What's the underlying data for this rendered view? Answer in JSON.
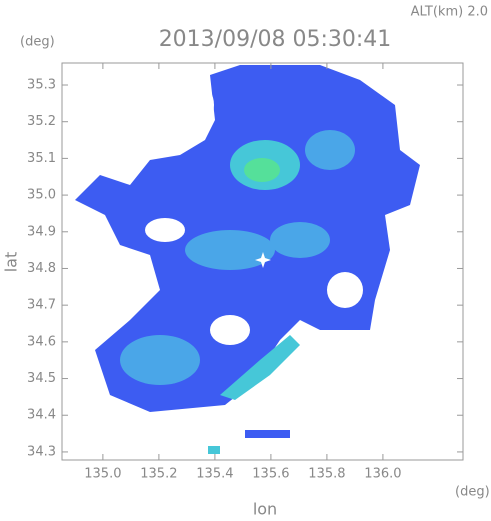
{
  "chart_data": {
    "type": "map",
    "title": "2013/09/08 05:30:41",
    "annotation": "ALT(km) 2.0",
    "x_label": "lon",
    "y_label": "lat",
    "x_unit": "(deg)",
    "y_unit": "(deg)",
    "xlim": [
      134.854,
      136.286
    ],
    "ylim": [
      34.278,
      35.36
    ],
    "xticks": [
      {
        "value": 135,
        "label": "135.0"
      },
      135.2,
      135.4,
      135.6,
      135.8,
      {
        "value": 136,
        "label": "136.0"
      }
    ],
    "yticks": [
      34.3,
      34.4,
      34.5,
      34.6,
      34.7,
      34.8,
      34.9,
      {
        "value": 35,
        "label": "35.0"
      },
      35.1,
      35.2,
      35.3
    ]
  }
}
